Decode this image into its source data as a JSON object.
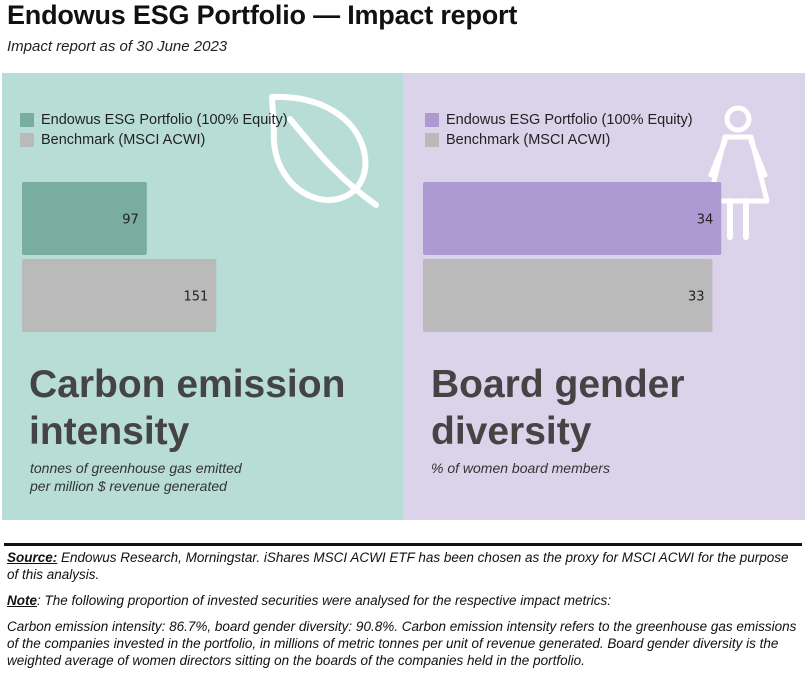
{
  "header": {
    "title": "Endowus ESG Portfolio — Impact report",
    "subtitle": "Impact report as of 30 June 2023"
  },
  "colors": {
    "carbon_panel_bg": "#b8ddd6",
    "gender_panel_bg": "#dbd3e9",
    "carbon_portfolio": "#78ad9f",
    "gender_portfolio": "#ad9ad3",
    "benchmark": "#bababa"
  },
  "chart_data": [
    {
      "type": "bar",
      "orientation": "horizontal",
      "title": "Carbon emission intensity",
      "caption": [
        "tonnes of greenhouse gas emitted",
        "per million $ revenue generated"
      ],
      "series": [
        {
          "name": "Endowus ESG Portfolio (100% Equity)",
          "values": [
            97
          ]
        },
        {
          "name": "Benchmark (MSCI ACWI)",
          "values": [
            151
          ]
        }
      ],
      "xlim": [
        0,
        300
      ],
      "legend": "top-left",
      "grid": false,
      "icon": "leaf-icon"
    },
    {
      "type": "bar",
      "orientation": "horizontal",
      "title": "Board gender diversity",
      "caption": [
        "% of women board members"
      ],
      "series": [
        {
          "name": "Endowus ESG Portfolio (100% Equity)",
          "values": [
            34
          ]
        },
        {
          "name": "Benchmark (MSCI ACWI)",
          "values": [
            33
          ]
        }
      ],
      "xlim": [
        0,
        44
      ],
      "legend": "top-left",
      "grid": false,
      "icon": "woman-icon"
    }
  ],
  "footer": {
    "source_label": "Source:",
    "source_text": " Endowus Research, Morningstar. iShares MSCI ACWI ETF has been chosen as the proxy for MSCI ACWI for the purpose of this analysis.",
    "note_label": "Note",
    "note_text": ": The following proportion of invested securities were analysed for the respective impact metrics:",
    "detail_text": "Carbon emission intensity: 86.7%, board gender diversity: 90.8%. Carbon emission intensity refers to the greenhouse gas emissions of the companies invested in the portfolio, in millions of metric tonnes per unit of revenue generated. Board gender diversity is the weighted average of women directors sitting on the boards of the companies held in the portfolio."
  }
}
